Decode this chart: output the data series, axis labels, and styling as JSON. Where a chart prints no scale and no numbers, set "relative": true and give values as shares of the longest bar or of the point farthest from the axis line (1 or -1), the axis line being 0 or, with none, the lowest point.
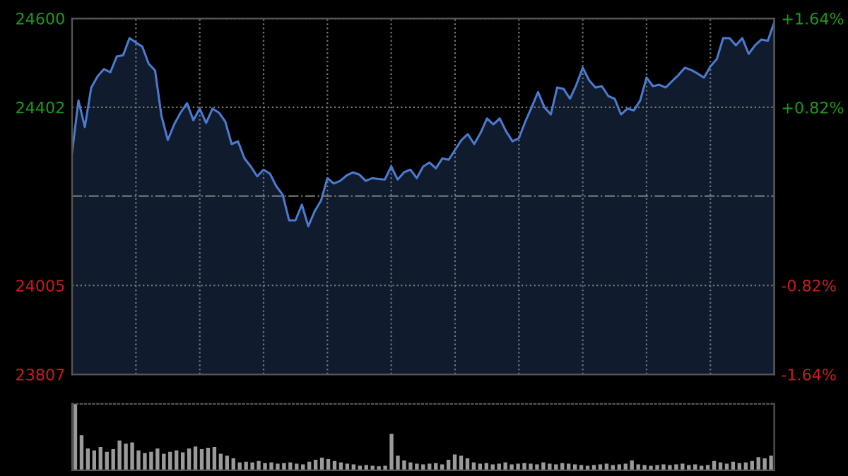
{
  "chart_data": [
    {
      "type": "area",
      "categories": [
        null,
        null,
        null,
        null,
        null,
        null,
        null,
        null,
        null,
        null,
        null,
        null,
        null,
        null,
        null,
        null,
        null,
        null,
        null,
        null,
        null,
        null,
        null,
        null,
        null,
        null,
        null,
        null,
        null,
        null,
        null,
        null,
        null,
        null,
        null,
        null,
        null,
        null,
        null,
        null,
        null,
        null,
        null,
        null,
        null,
        null,
        null,
        null,
        null,
        null,
        null,
        null,
        null,
        null,
        null,
        null,
        null,
        null,
        null,
        null,
        null,
        null,
        null,
        null,
        null,
        null,
        null,
        null,
        null,
        null,
        null,
        null,
        null,
        null,
        null,
        null,
        null,
        null,
        null,
        null,
        null,
        null,
        null,
        null,
        null,
        null,
        null,
        null,
        null,
        null,
        null,
        null,
        null,
        null,
        null,
        null,
        null,
        null,
        null,
        null,
        null,
        null,
        null,
        null,
        null,
        null,
        null,
        null,
        null,
        null,
        null
      ],
      "series": [
        {
          "color": "#4a7bd0",
          "values": [
            24301,
            24417,
            24358,
            24446,
            24471,
            24487,
            24480,
            24515,
            24518,
            24556,
            24546,
            24537,
            24499,
            24484,
            24383,
            24329,
            24364,
            24390,
            24411,
            24373,
            24399,
            24367,
            24399,
            24390,
            24370,
            24320,
            24326,
            24288,
            24270,
            24248,
            24263,
            24254,
            24226,
            24207,
            24150,
            24150,
            24185,
            24137,
            24170,
            24194,
            24244,
            24232,
            24238,
            24250,
            24257,
            24252,
            24238,
            24244,
            24242,
            24241,
            24270,
            24241,
            24257,
            24263,
            24244,
            24270,
            24279,
            24266,
            24288,
            24285,
            24307,
            24329,
            24342,
            24320,
            24345,
            24377,
            24364,
            24377,
            24348,
            24326,
            24333,
            24370,
            24402,
            24436,
            24402,
            24386,
            24446,
            24443,
            24421,
            24452,
            24490,
            24462,
            24446,
            24449,
            24427,
            24421,
            24386,
            24399,
            24395,
            24417,
            24468,
            24449,
            24452,
            24446,
            24460,
            24474,
            24490,
            24485,
            24477,
            24468,
            24493,
            24509,
            24556,
            24556,
            24540,
            24556,
            24521,
            24540,
            24553,
            24550,
            24591
          ]
        }
      ],
      "ylim": [
        23807,
        24600
      ],
      "yticks": [
        23807,
        24005,
        24402,
        24600
      ],
      "y2lim": [
        -1.64,
        1.64
      ],
      "y2ticks": [
        {
          "value": -1.64,
          "label": "-1.64%"
        },
        {
          "value": -0.82,
          "label": "-0.82%"
        },
        {
          "value": 0.82,
          "label": "+0.82%"
        },
        {
          "value": 1.64,
          "label": "+1.64%"
        }
      ],
      "ref_lines": [
        {
          "axis": "y",
          "value": 24204,
          "label": null,
          "line_style": "dashdot"
        }
      ],
      "grid": true,
      "tick_labels": "y",
      "line_style": "solid",
      "marker": "none"
    },
    {
      "type": "bar",
      "relative": true,
      "color": "#9a9a9a",
      "categories": [
        null,
        null,
        null,
        null,
        null,
        null,
        null,
        null,
        null,
        null,
        null,
        null,
        null,
        null,
        null,
        null,
        null,
        null,
        null,
        null,
        null,
        null,
        null,
        null,
        null,
        null,
        null,
        null,
        null,
        null,
        null,
        null,
        null,
        null,
        null,
        null,
        null,
        null,
        null,
        null,
        null,
        null,
        null,
        null,
        null,
        null,
        null,
        null,
        null,
        null,
        null,
        null,
        null,
        null,
        null,
        null,
        null,
        null,
        null,
        null,
        null,
        null,
        null,
        null,
        null,
        null,
        null,
        null,
        null,
        null,
        null,
        null,
        null,
        null,
        null,
        null,
        null,
        null,
        null,
        null,
        null,
        null,
        null,
        null,
        null,
        null,
        null,
        null,
        null,
        null,
        null,
        null,
        null,
        null,
        null,
        null,
        null,
        null,
        null,
        null,
        null,
        null,
        null,
        null,
        null,
        null,
        null,
        null,
        null,
        null,
        null
      ],
      "values": [
        1.0,
        0.53,
        0.33,
        0.3,
        0.35,
        0.28,
        0.32,
        0.45,
        0.4,
        0.42,
        0.3,
        0.26,
        0.28,
        0.33,
        0.25,
        0.28,
        0.3,
        0.27,
        0.33,
        0.36,
        0.32,
        0.34,
        0.35,
        0.25,
        0.22,
        0.18,
        0.12,
        0.13,
        0.12,
        0.14,
        0.11,
        0.12,
        0.1,
        0.11,
        0.12,
        0.1,
        0.09,
        0.13,
        0.16,
        0.19,
        0.17,
        0.14,
        0.12,
        0.1,
        0.09,
        0.07,
        0.08,
        0.07,
        0.06,
        0.07,
        0.55,
        0.22,
        0.15,
        0.12,
        0.1,
        0.09,
        0.1,
        0.11,
        0.09,
        0.16,
        0.24,
        0.22,
        0.18,
        0.12,
        0.1,
        0.11,
        0.09,
        0.1,
        0.12,
        0.09,
        0.1,
        0.11,
        0.1,
        0.09,
        0.12,
        0.1,
        0.09,
        0.11,
        0.1,
        0.09,
        0.08,
        0.07,
        0.08,
        0.09,
        0.1,
        0.08,
        0.09,
        0.1,
        0.15,
        0.09,
        0.08,
        0.07,
        0.08,
        0.09,
        0.08,
        0.09,
        0.1,
        0.08,
        0.09,
        0.07,
        0.08,
        0.14,
        0.12,
        0.1,
        0.13,
        0.11,
        0.12,
        0.14,
        0.2,
        0.18,
        0.22
      ]
    }
  ]
}
